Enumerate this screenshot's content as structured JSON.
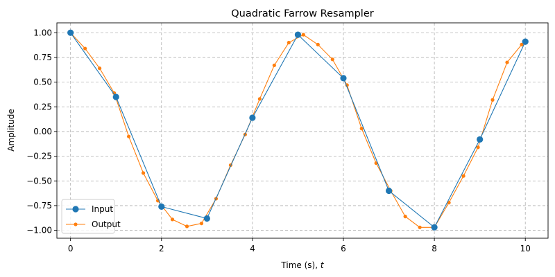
{
  "chart_data": {
    "type": "line",
    "title": "Quadratic Farrow Resampler",
    "xlabel": "Time (s), ",
    "xlabel_var": "t",
    "ylabel": "Amplitude",
    "xlim": [
      -0.3,
      10.5
    ],
    "ylim": [
      -1.08,
      1.1
    ],
    "x_ticks": [
      0,
      2,
      4,
      6,
      8,
      10
    ],
    "x_tick_labels": [
      "0",
      "2",
      "4",
      "6",
      "8",
      "10"
    ],
    "y_ticks": [
      1.0,
      0.75,
      0.5,
      0.25,
      0.0,
      -0.25,
      -0.5,
      -0.75,
      -1.0
    ],
    "y_tick_labels": [
      "1.00",
      "0.75",
      "0.50",
      "0.25",
      "0.00",
      "−0.25",
      "−0.50",
      "−0.75",
      "−1.00"
    ],
    "grid": true,
    "legend_position": "lower-left",
    "series": [
      {
        "name": "Input",
        "color": "#1f77b4",
        "marker": "circle-large",
        "x": [
          0,
          1,
          2,
          3,
          4,
          5,
          6,
          7,
          8,
          9,
          10
        ],
        "y": [
          1.0,
          0.35,
          -0.76,
          -0.88,
          0.14,
          0.98,
          0.54,
          -0.6,
          -0.97,
          -0.08,
          0.91
        ]
      },
      {
        "name": "Output",
        "color": "#ff7f0e",
        "marker": "circle-small",
        "x": [
          0,
          0.32,
          0.64,
          0.96,
          1.28,
          1.6,
          1.92,
          2.24,
          2.56,
          2.88,
          3.2,
          3.52,
          3.84,
          4.16,
          4.48,
          4.8,
          5.12,
          5.44,
          5.76,
          6.08,
          6.4,
          6.72,
          7.04,
          7.36,
          7.68,
          8.0,
          8.32,
          8.64,
          8.96,
          9.28,
          9.6,
          9.92
        ],
        "y": [
          1.0,
          0.84,
          0.64,
          0.39,
          -0.05,
          -0.42,
          -0.7,
          -0.89,
          -0.96,
          -0.93,
          -0.68,
          -0.34,
          -0.03,
          0.33,
          0.67,
          0.9,
          0.98,
          0.88,
          0.73,
          0.47,
          0.03,
          -0.32,
          -0.6,
          -0.86,
          -0.97,
          -0.97,
          -0.72,
          -0.45,
          -0.16,
          0.32,
          0.7,
          0.88
        ]
      }
    ]
  }
}
